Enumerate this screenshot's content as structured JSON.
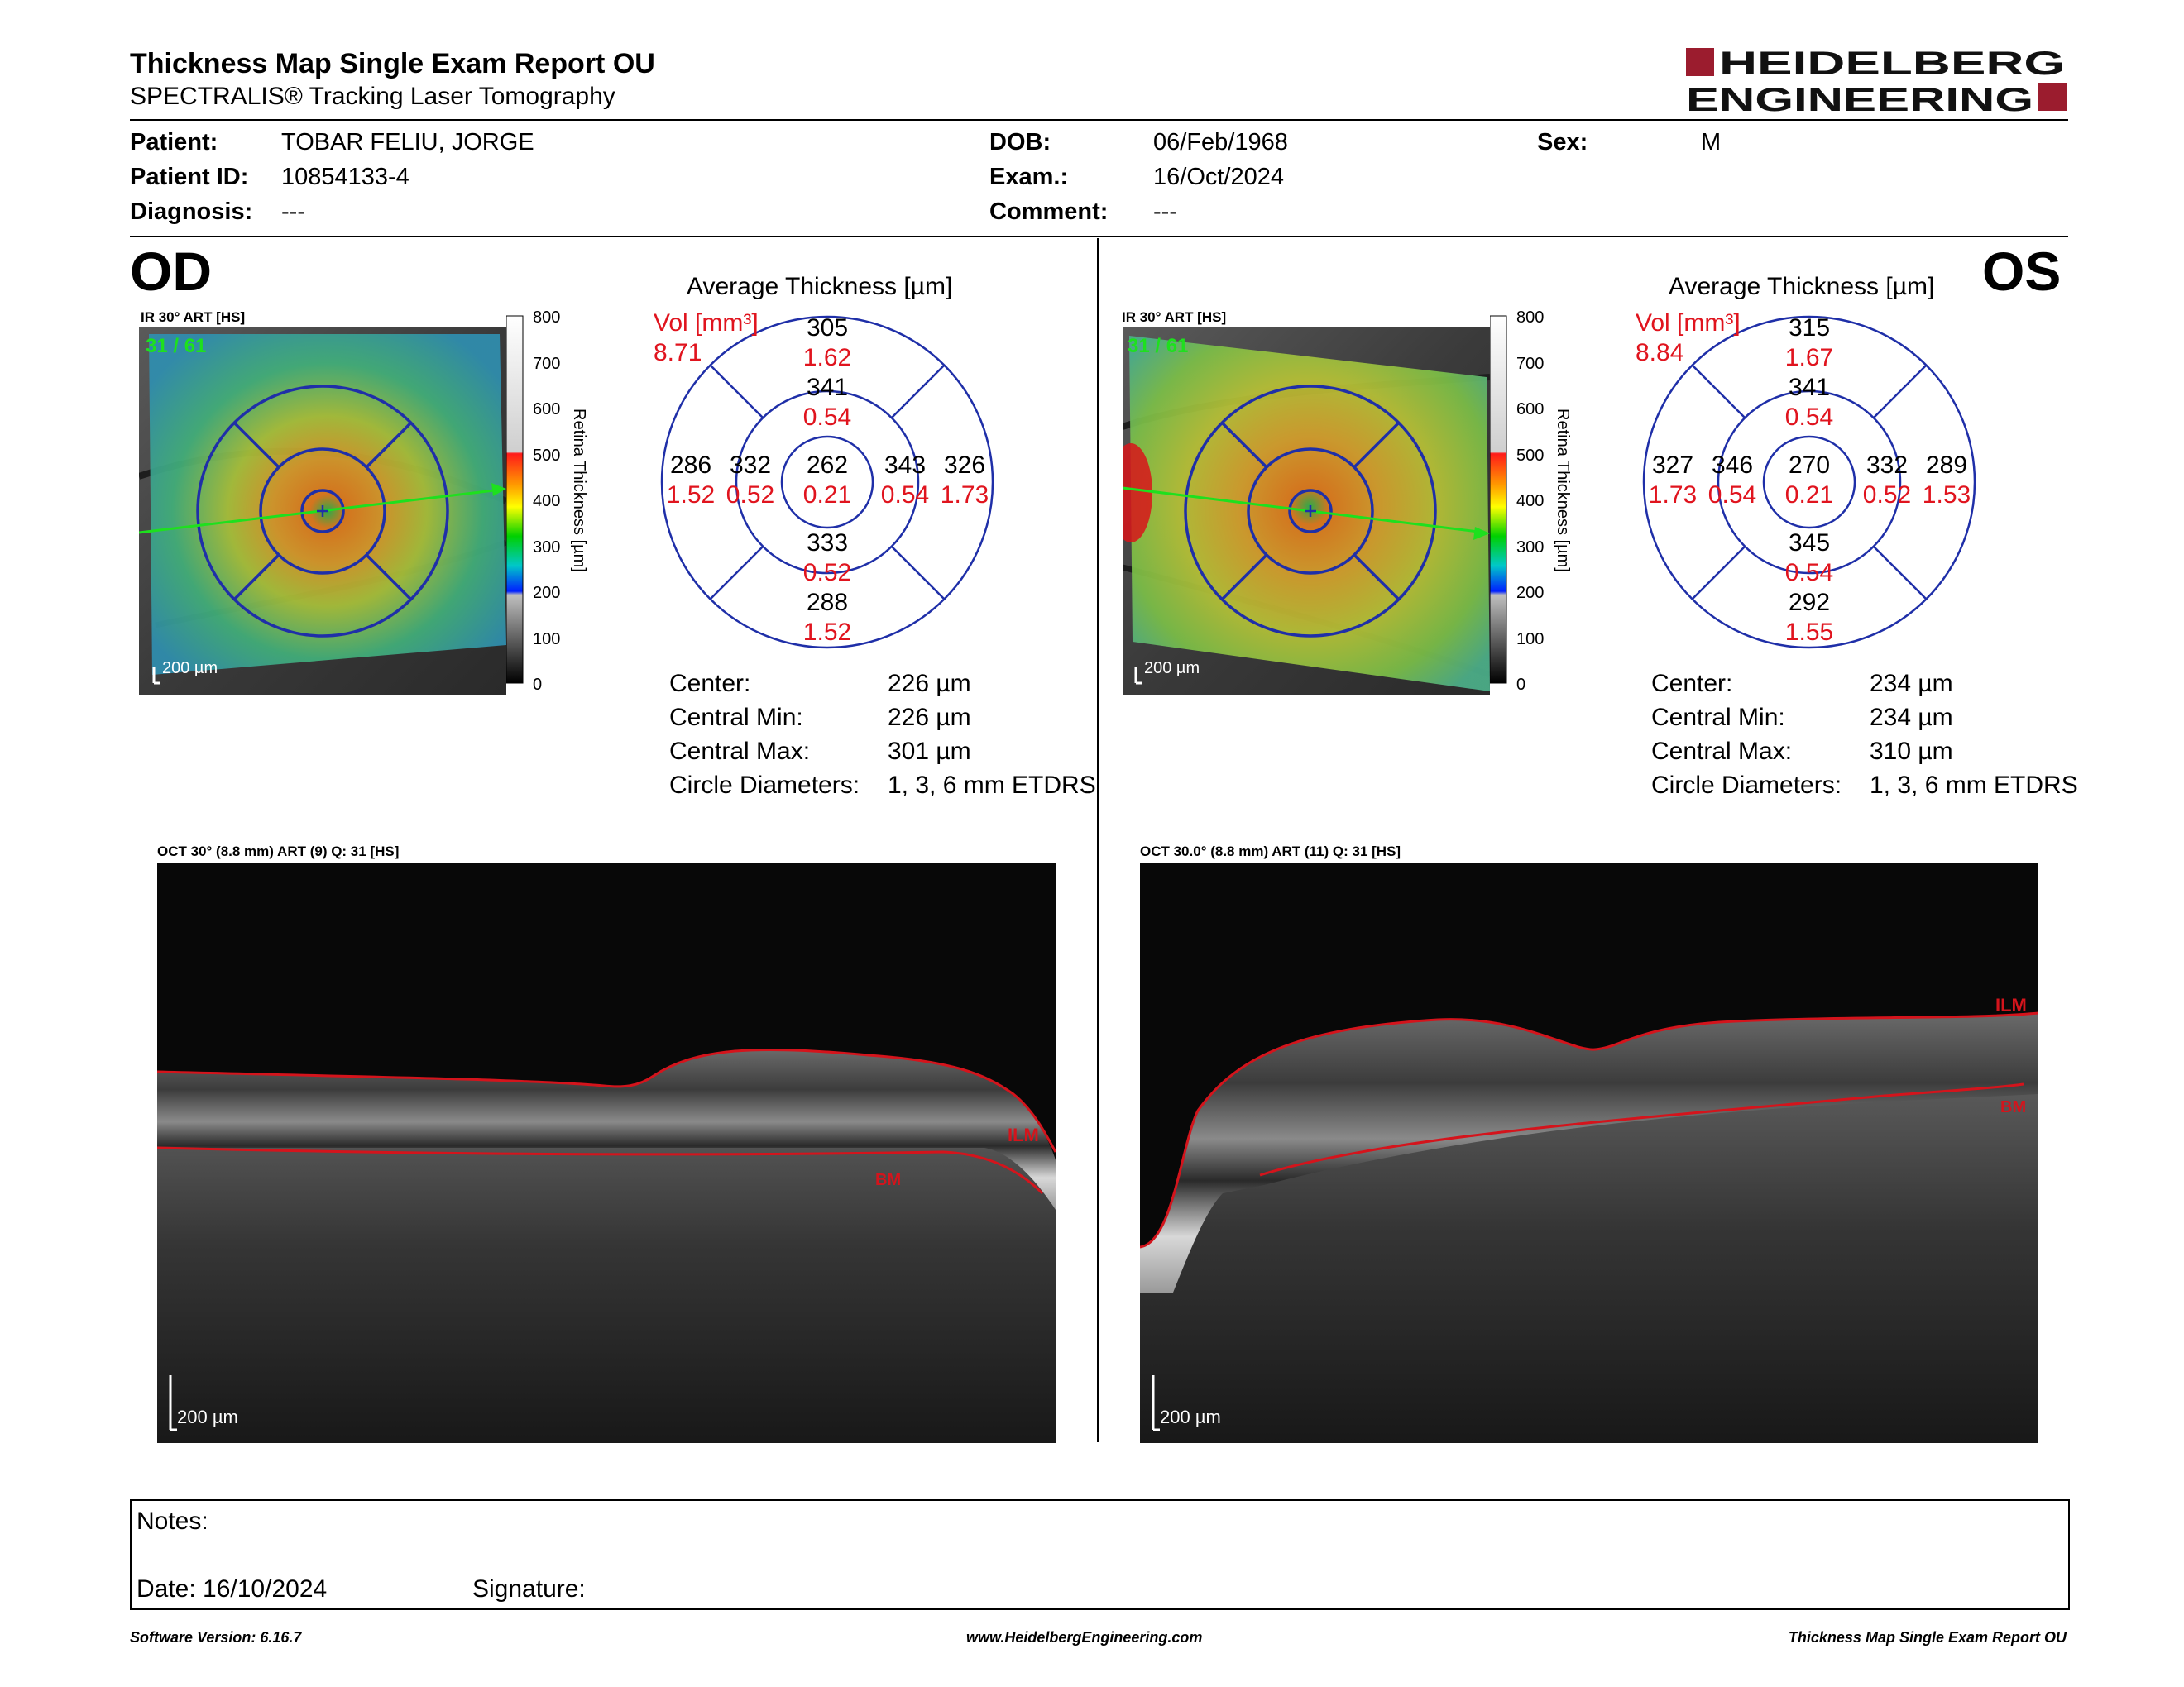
{
  "header": {
    "title": "Thickness Map Single Exam Report OU",
    "subtitle": "SPECTRALIS® Tracking Laser Tomography",
    "logo_line1": "HEIDELBERG",
    "logo_line2": "ENGINEERING",
    "brand_color": "#9b1c2e"
  },
  "patient": {
    "patient_label": "Patient:",
    "patient_value": "TOBAR FELIU, JORGE",
    "id_label": "Patient ID:",
    "id_value": "10854133-4",
    "diag_label": "Diagnosis:",
    "diag_value": "---",
    "dob_label": "DOB:",
    "dob_value": "06/Feb/1968",
    "exam_label": "Exam.:",
    "exam_value": "16/Oct/2024",
    "comment_label": "Comment:",
    "comment_value": "---",
    "sex_label": "Sex:",
    "sex_value": "M"
  },
  "od": {
    "eye": "OD",
    "ir_caption": "IR 30° ART [HS]",
    "counter": "31 / 61",
    "scalebar": "200 µm",
    "colorbar_ticks": [
      "800",
      "700",
      "600",
      "500",
      "400",
      "300",
      "200",
      "100",
      "0"
    ],
    "colorbar_title": "Retina Thickness [µm]",
    "avg_title": "Average Thickness [µm]",
    "vol_label": "Vol [mm³]",
    "vol_value": "8.71",
    "sectors": {
      "outer_sup": {
        "t": "305",
        "v": "1.62"
      },
      "inner_sup": {
        "t": "341",
        "v": "0.54"
      },
      "outer_left": {
        "t": "286",
        "v": "1.52"
      },
      "inner_left": {
        "t": "332",
        "v": "0.52"
      },
      "center": {
        "t": "262",
        "v": "0.21"
      },
      "inner_right": {
        "t": "343",
        "v": "0.54"
      },
      "outer_right": {
        "t": "326",
        "v": "1.73"
      },
      "inner_inf": {
        "t": "333",
        "v": "0.52"
      },
      "outer_inf": {
        "t": "288",
        "v": "1.52"
      }
    },
    "stats": {
      "center_label": "Center:",
      "center_value": "226 µm",
      "min_label": "Central Min:",
      "min_value": "226 µm",
      "max_label": "Central Max:",
      "max_value": "301 µm",
      "circ_label": "Circle Diameters:",
      "circ_value": "1, 3, 6 mm ETDRS"
    },
    "oct_caption": "OCT 30° (8.8 mm) ART (9) Q: 31 [HS]",
    "oct_scalebar": "200 µm",
    "ilm_label": "ILM",
    "bm_label": "BM"
  },
  "os": {
    "eye": "OS",
    "ir_caption": "IR 30° ART [HS]",
    "counter": "31 / 61",
    "scalebar": "200 µm",
    "colorbar_ticks": [
      "800",
      "700",
      "600",
      "500",
      "400",
      "300",
      "200",
      "100",
      "0"
    ],
    "colorbar_title": "Retina Thickness [µm]",
    "avg_title": "Average Thickness [µm]",
    "vol_label": "Vol [mm³]",
    "vol_value": "8.84",
    "sectors": {
      "outer_sup": {
        "t": "315",
        "v": "1.67"
      },
      "inner_sup": {
        "t": "341",
        "v": "0.54"
      },
      "outer_left": {
        "t": "327",
        "v": "1.73"
      },
      "inner_left": {
        "t": "346",
        "v": "0.54"
      },
      "center": {
        "t": "270",
        "v": "0.21"
      },
      "inner_right": {
        "t": "332",
        "v": "0.52"
      },
      "outer_right": {
        "t": "289",
        "v": "1.53"
      },
      "inner_inf": {
        "t": "345",
        "v": "0.54"
      },
      "outer_inf": {
        "t": "292",
        "v": "1.55"
      }
    },
    "stats": {
      "center_label": "Center:",
      "center_value": "234 µm",
      "min_label": "Central Min:",
      "min_value": "234 µm",
      "max_label": "Central Max:",
      "max_value": "310 µm",
      "circ_label": "Circle Diameters:",
      "circ_value": "1, 3, 6 mm ETDRS"
    },
    "oct_caption": "OCT 30.0° (8.8 mm) ART (11) Q: 31 [HS]",
    "oct_scalebar": "200 µm",
    "ilm_label": "ILM",
    "bm_label": "BM"
  },
  "notes": {
    "notes_label": "Notes:",
    "date_label": "Date: 16/10/2024",
    "signature_label": "Signature:"
  },
  "footer": {
    "left": "Software Version: 6.16.7",
    "center": "www.HeidelbergEngineering.com",
    "right": "Thickness Map Single Exam Report OU"
  },
  "colors": {
    "grid_blue": "#1f2fa8",
    "value_red": "#e0141e",
    "segment_red": "#d4141c",
    "scan_green": "#1ee01e"
  }
}
